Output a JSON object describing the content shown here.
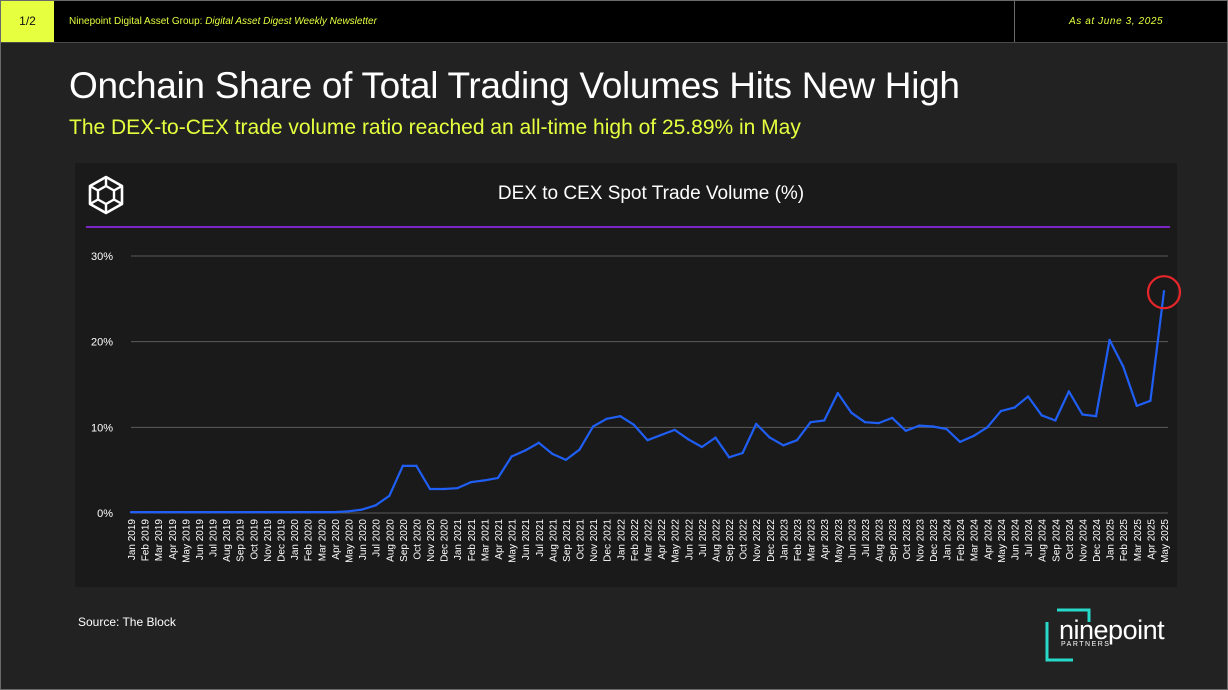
{
  "header": {
    "page_indicator": "1/2",
    "org_name": "Ninepoint Digital Asset Group: ",
    "newsletter_name": "Digital Asset Digest Weekly Newsletter",
    "as_at": "As at June 3, 2025"
  },
  "title": "Onchain Share of Total Trading Volumes Hits New High",
  "subtitle": "The DEX-to-CEX trade volume ratio reached an all-time high of 25.89% in May",
  "source": "Source: The Block",
  "brand": {
    "name": "ninepoint",
    "tagline": "PARTNERS"
  },
  "colors": {
    "accent": "#e6ff3f",
    "line": "#1f5ff5",
    "rule": "#7b25c4",
    "highlight": "#e8262a",
    "brand_teal": "#26d9c8"
  },
  "icons": {
    "chart_logo": "the-block-cube-icon",
    "brand_logo": "ninepoint-logo-icon"
  },
  "chart_data": {
    "type": "line",
    "title": "DEX to CEX Spot Trade Volume (%)",
    "ylim": [
      0,
      30
    ],
    "yticks": [
      "0%",
      "10%",
      "20%",
      "30%"
    ],
    "ytick_values": [
      0,
      10,
      20,
      30
    ],
    "grid": true,
    "highlight": {
      "category": "May 2025",
      "value": 25.89
    },
    "categories": [
      "Jan 2019",
      "Feb 2019",
      "Mar 2019",
      "Apr 2019",
      "May 2019",
      "Jun 2019",
      "Jul 2019",
      "Aug 2019",
      "Sep 2019",
      "Oct 2019",
      "Nov 2019",
      "Dec 2019",
      "Jan 2020",
      "Feb 2020",
      "Mar 2020",
      "Apr 2020",
      "May 2020",
      "Jun 2020",
      "Jul 2020",
      "Aug 2020",
      "Sep 2020",
      "Oct 2020",
      "Nov 2020",
      "Dec 2020",
      "Jan 2021",
      "Feb 2021",
      "Mar 2021",
      "Apr 2021",
      "May 2021",
      "Jun 2021",
      "Jul 2021",
      "Aug 2021",
      "Sep 2021",
      "Oct 2021",
      "Nov 2021",
      "Dec 2021",
      "Jan 2022",
      "Feb 2022",
      "Mar 2022",
      "Apr 2022",
      "May 2022",
      "Jun 2022",
      "Jul 2022",
      "Aug 2022",
      "Sep 2022",
      "Oct 2022",
      "Nov 2022",
      "Dec 2022",
      "Jan 2023",
      "Feb 2023",
      "Mar 2023",
      "Apr 2023",
      "May 2023",
      "Jun 2023",
      "Jul 2023",
      "Aug 2023",
      "Sep 2023",
      "Oct 2023",
      "Nov 2023",
      "Dec 2023",
      "Jan 2024",
      "Feb 2024",
      "Mar 2024",
      "Apr 2024",
      "May 2024",
      "Jun 2024",
      "Jul 2024",
      "Aug 2024",
      "Sep 2024",
      "Oct 2024",
      "Nov 2024",
      "Dec 2024",
      "Jan 2025",
      "Feb 2025",
      "Mar 2025",
      "Apr 2025",
      "May 2025"
    ],
    "series": [
      {
        "values": [
          0.1,
          0.1,
          0.1,
          0.1,
          0.1,
          0.1,
          0.1,
          0.1,
          0.1,
          0.1,
          0.1,
          0.1,
          0.1,
          0.1,
          0.1,
          0.1,
          0.2,
          0.4,
          0.9,
          2.0,
          5.5,
          5.5,
          2.8,
          2.8,
          2.9,
          3.6,
          3.8,
          4.1,
          6.6,
          7.3,
          8.2,
          6.9,
          6.2,
          7.4,
          10.1,
          11.0,
          11.3,
          10.3,
          8.5,
          9.1,
          9.7,
          8.6,
          7.7,
          8.8,
          6.5,
          7.0,
          10.4,
          8.8,
          7.9,
          8.5,
          10.6,
          10.8,
          14.0,
          11.7,
          10.6,
          10.5,
          11.1,
          9.6,
          10.2,
          10.1,
          9.8,
          8.3,
          9.0,
          10.0,
          11.9,
          12.3,
          13.6,
          11.4,
          10.8,
          14.2,
          11.5,
          11.3,
          20.2,
          17.1,
          12.5,
          13.1,
          25.89
        ]
      }
    ]
  }
}
